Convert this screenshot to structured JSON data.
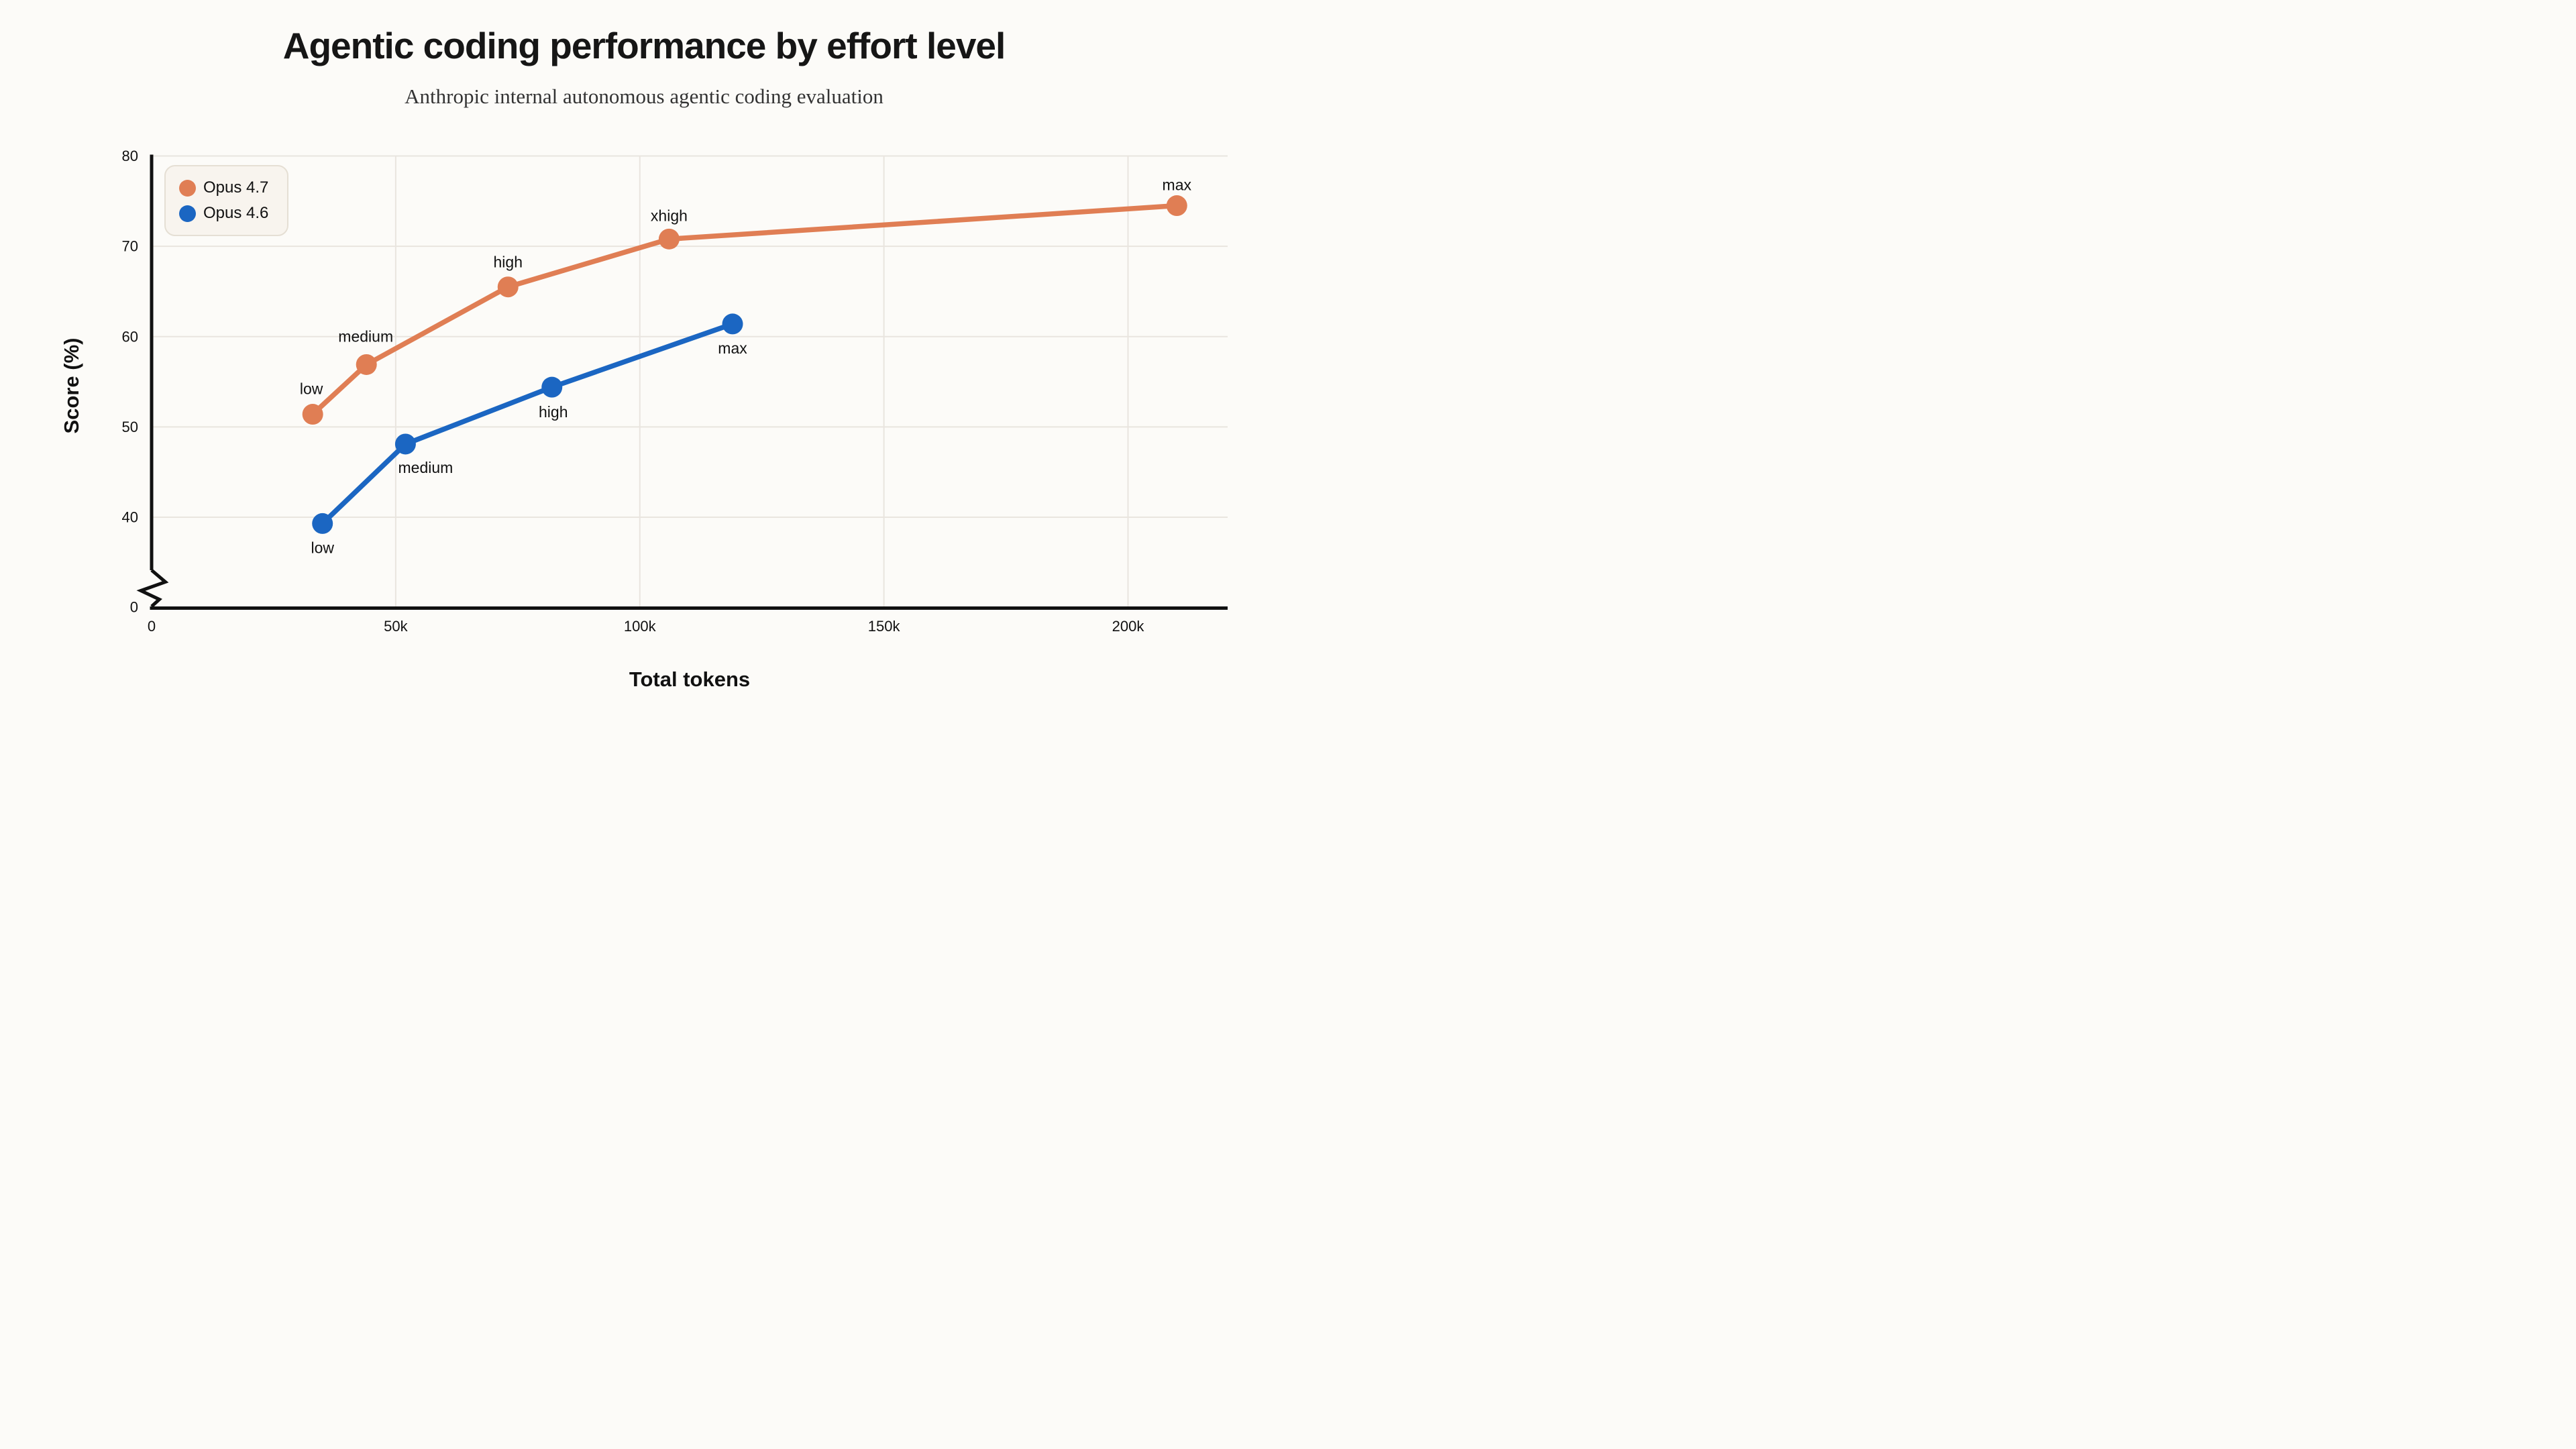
{
  "chart_data": {
    "type": "line",
    "title": "Agentic coding performance by effort level",
    "subtitle": "Anthropic internal autonomous agentic coding evaluation",
    "xlabel": "Total tokens",
    "ylabel": "Score (%)",
    "x_axis": {
      "range_tokens_k": [
        0,
        220
      ],
      "ticks": [
        {
          "v": 0,
          "label": "0"
        },
        {
          "v": 50,
          "label": "50k"
        },
        {
          "v": 100,
          "label": "100k"
        },
        {
          "v": 150,
          "label": "150k"
        },
        {
          "v": 200,
          "label": "200k"
        }
      ]
    },
    "y_axis": {
      "range": [
        0,
        80
      ],
      "broken_axis": true,
      "ticks": [
        {
          "v": 80,
          "label": "80"
        },
        {
          "v": 70,
          "label": "70"
        },
        {
          "v": 60,
          "label": "60"
        },
        {
          "v": 50,
          "label": "50"
        },
        {
          "v": 40,
          "label": "40"
        },
        {
          "v": 0,
          "label": "0"
        }
      ]
    },
    "grid": true,
    "legend_position": "top-left",
    "series": [
      {
        "name": "Opus 4.7",
        "color": "#E07E54",
        "points": [
          {
            "effort": "low",
            "tokens_k": 33,
            "score": 51.4,
            "label_dx": -2,
            "label_dy": -38
          },
          {
            "effort": "medium",
            "tokens_k": 44,
            "score": 56.9,
            "label_dx": -1,
            "label_dy": -42
          },
          {
            "effort": "high",
            "tokens_k": 73,
            "score": 65.5,
            "label_dx": 0,
            "label_dy": -37
          },
          {
            "effort": "xhigh",
            "tokens_k": 106,
            "score": 70.8,
            "label_dx": 0,
            "label_dy": -35
          },
          {
            "effort": "max",
            "tokens_k": 210,
            "score": 74.5,
            "label_dx": 0,
            "label_dy": -31
          }
        ]
      },
      {
        "name": "Opus 4.6",
        "color": "#1B66C2",
        "points": [
          {
            "effort": "low",
            "tokens_k": 35,
            "score": 39.3,
            "label_dx": 0,
            "label_dy": 36
          },
          {
            "effort": "medium",
            "tokens_k": 52,
            "score": 48.1,
            "label_dx": 30,
            "label_dy": 35
          },
          {
            "effort": "high",
            "tokens_k": 82,
            "score": 54.4,
            "label_dx": 2,
            "label_dy": 37
          },
          {
            "effort": "max",
            "tokens_k": 119,
            "score": 61.4,
            "label_dx": 0,
            "label_dy": 36
          }
        ]
      }
    ]
  },
  "style": {
    "background": "#FCFBF8",
    "grid_color": "#E9E5DF",
    "axis_color": "#111111",
    "tick_color": "#111111",
    "point_label_color": "#3A3A3A",
    "legend_bg": "#F8F4EE",
    "legend_border": "#E5DFD4"
  }
}
